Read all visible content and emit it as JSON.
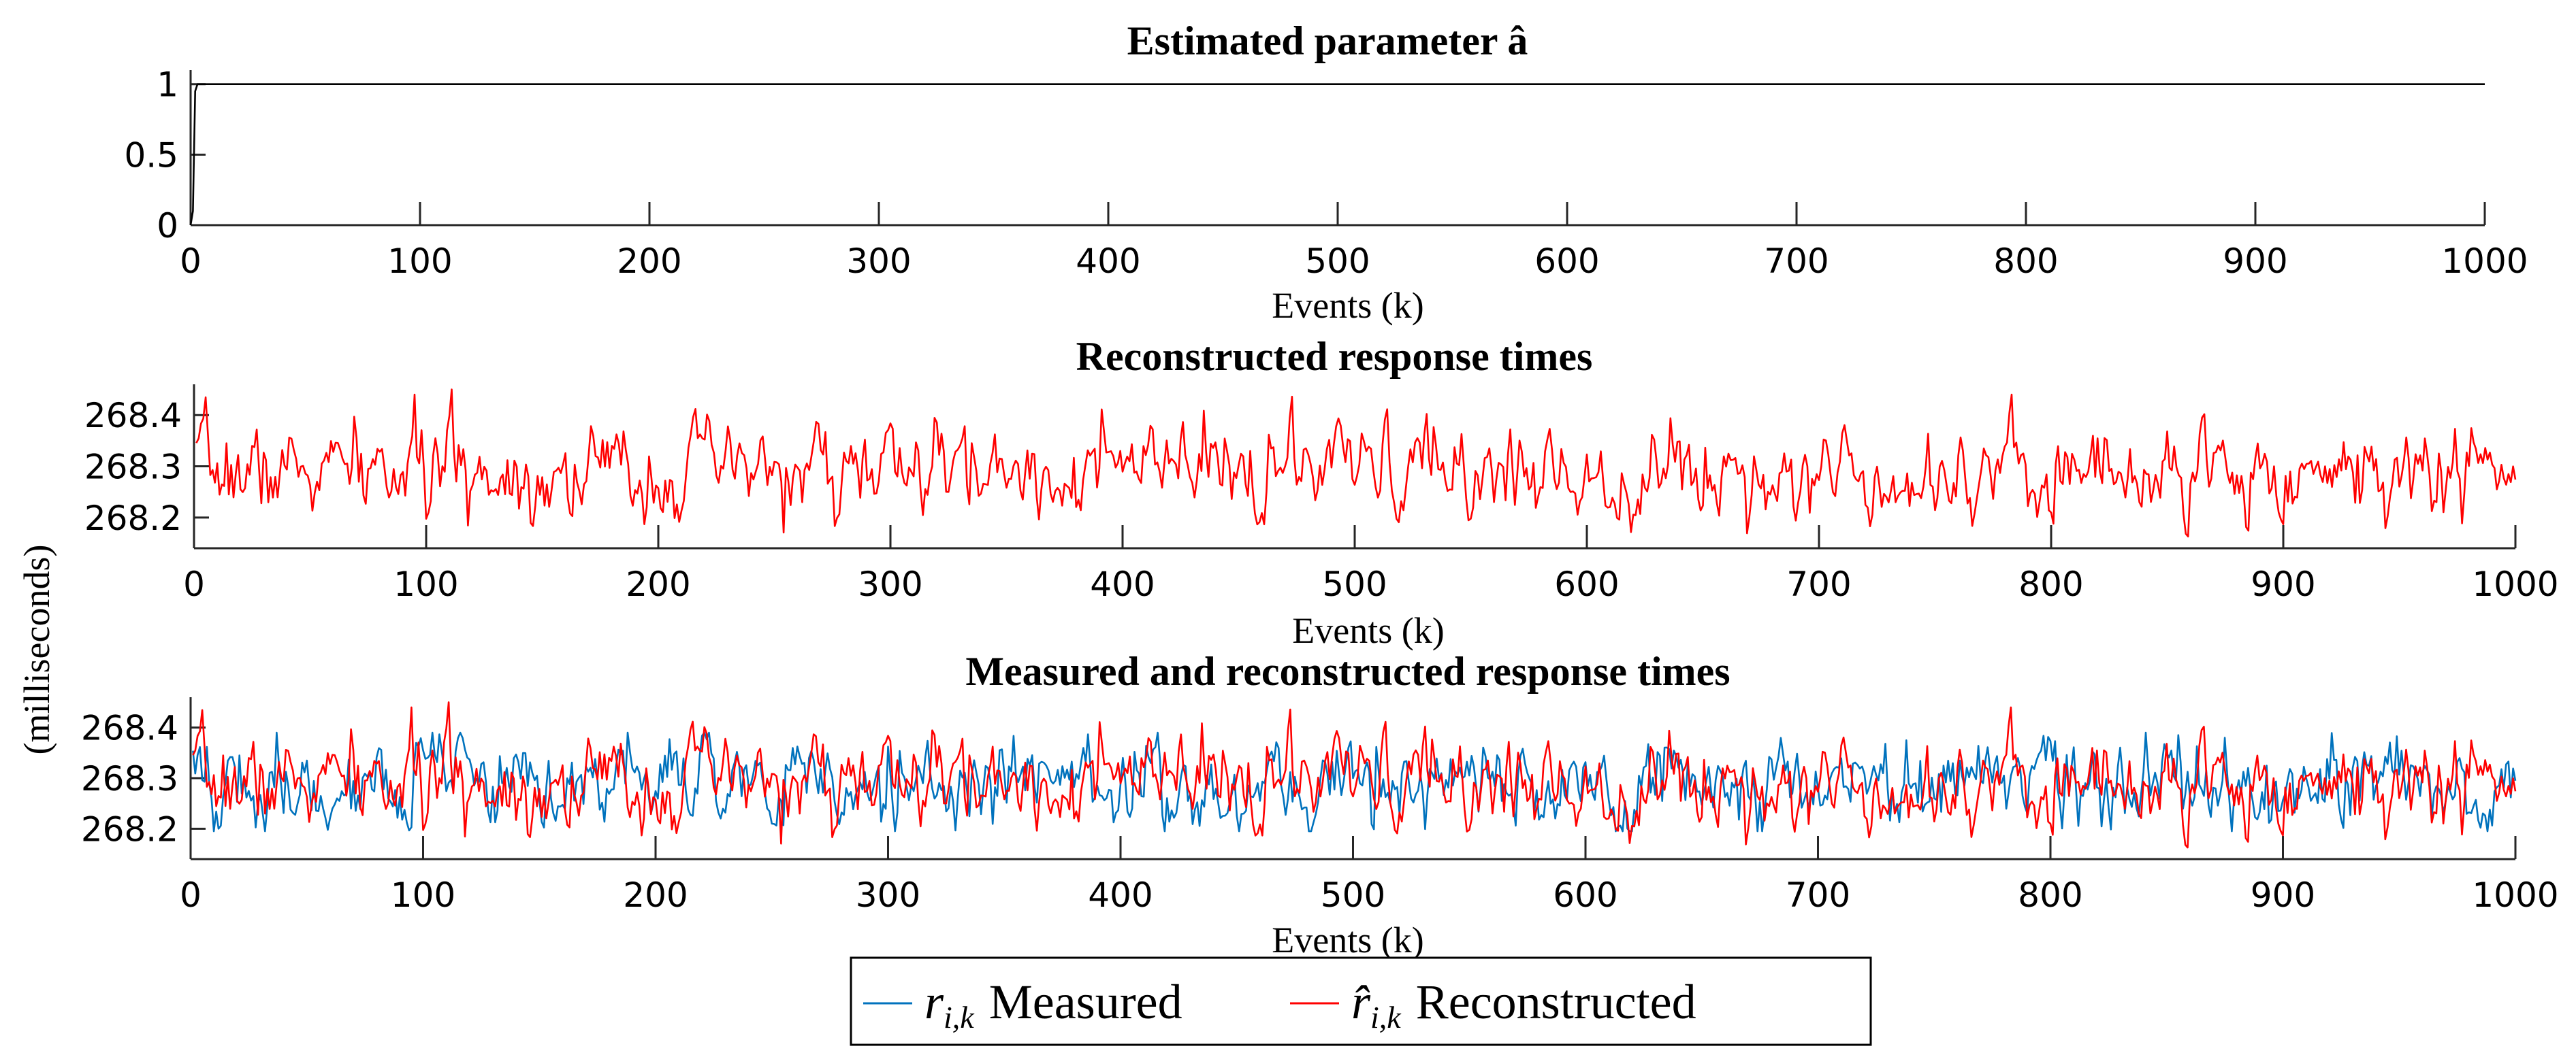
{
  "figure": {
    "shared_ylabel": "(milliseconds)",
    "legend": {
      "placement": "bottom-center",
      "entries": [
        {
          "symbol": "r",
          "subscript": "i,k",
          "label": "Measured",
          "color": "#0072BD"
        },
        {
          "symbol": "r̂",
          "subscript": "i,k",
          "label": "Reconstructed",
          "color": "#FF0000"
        }
      ]
    }
  },
  "chart_data": [
    {
      "type": "line",
      "title": "Estimated parameter â",
      "xlabel": "Events (k)",
      "ylabel": "",
      "xlim": [
        0,
        1000
      ],
      "ylim": [
        0,
        1.1
      ],
      "xticks": [
        0,
        100,
        200,
        300,
        400,
        500,
        600,
        700,
        800,
        900,
        1000
      ],
      "yticks": [
        0,
        0.5,
        1
      ],
      "ytick_labels": [
        "0",
        "0.5",
        "1"
      ],
      "series": [
        {
          "name": "a_hat",
          "color": "#000000",
          "x": [
            0,
            1,
            2,
            3,
            1000
          ],
          "values": [
            0,
            0.1,
            0.95,
            1,
            1
          ]
        }
      ]
    },
    {
      "type": "line",
      "title": "Reconstructed response times",
      "xlabel": "Events (k)",
      "ylabel": "(milliseconds)",
      "xlim": [
        0,
        1000
      ],
      "ylim": [
        268.14,
        268.46
      ],
      "xticks": [
        0,
        100,
        200,
        300,
        400,
        500,
        600,
        700,
        800,
        900,
        1000
      ],
      "yticks": [
        268.2,
        268.3,
        268.4
      ],
      "ytick_labels": [
        "268.2",
        "268.3",
        "268.4"
      ],
      "series": [
        {
          "name": "Reconstructed",
          "color": "#FF0000",
          "n": 1000,
          "mean": 268.29,
          "std": 0.045,
          "min": 268.15,
          "max": 268.45,
          "peak_at": 111,
          "seed": 7
        }
      ]
    },
    {
      "type": "line",
      "title": "Measured and reconstructed response times",
      "xlabel": "Events (k)",
      "ylabel": "(milliseconds)",
      "xlim": [
        0,
        1000
      ],
      "ylim": [
        268.14,
        268.46
      ],
      "xticks": [
        0,
        100,
        200,
        300,
        400,
        500,
        600,
        700,
        800,
        900,
        1000
      ],
      "yticks": [
        268.2,
        268.3,
        268.4
      ],
      "ytick_labels": [
        "268.2",
        "268.3",
        "268.4"
      ],
      "series": [
        {
          "name": "Measured",
          "color": "#0072BD",
          "n": 1000,
          "mean": 268.29,
          "std": 0.045,
          "min": 268.19,
          "max": 268.4,
          "seed": 19
        },
        {
          "name": "Reconstructed",
          "color": "#FF0000",
          "n": 1000,
          "mean": 268.29,
          "std": 0.045,
          "min": 268.15,
          "max": 268.45,
          "peak_at": 111,
          "seed": 7
        }
      ]
    }
  ]
}
